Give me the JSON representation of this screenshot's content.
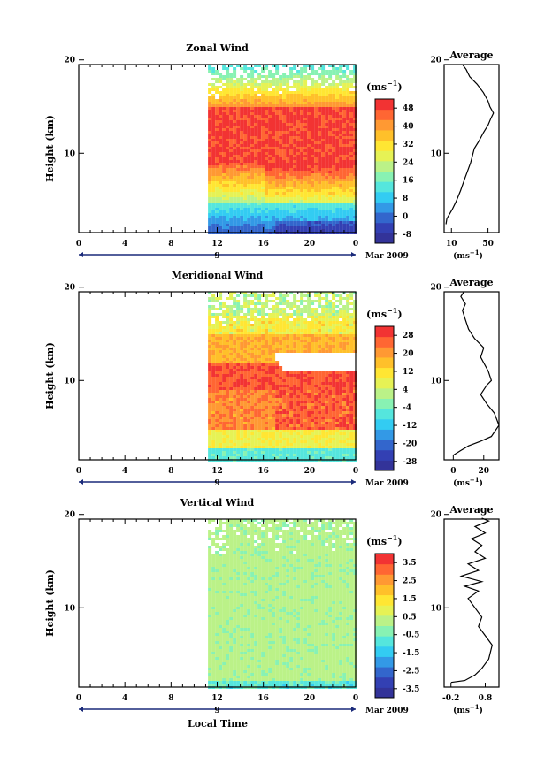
{
  "figure": {
    "xlabel": "Local Time",
    "date_label": "Mar 2009",
    "day_label": "9",
    "unit_label": "(ms",
    "unit_sup": "−1",
    "average_title": "Average"
  },
  "colorscale": [
    "#333399",
    "#3340b3",
    "#3366cc",
    "#3399e6",
    "#33ccf2",
    "#55e6dd",
    "#88f2b3",
    "#bbf288",
    "#e6f255",
    "#ffe633",
    "#ffc02a",
    "#ff9933",
    "#ff6633",
    "#f23333"
  ],
  "chart_data": [
    {
      "type": "heatmap",
      "title": "Zonal Wind",
      "ylabel": "Height (km)",
      "x_ticks": [
        "0",
        "4",
        "8",
        "12",
        "16",
        "20",
        "0"
      ],
      "xlim": [
        0,
        24
      ],
      "y_ticks": [
        "20",
        "10"
      ],
      "ylim": [
        1.5,
        19.5
      ],
      "data_start_hour": 11.2,
      "colorbar": {
        "ticks": [
          "48",
          "40",
          "32",
          "24",
          "16",
          "8",
          "0",
          "-8"
        ],
        "range": [
          -12,
          52
        ]
      },
      "profile_points": [
        [
          4,
          2.4
        ],
        [
          5,
          3
        ],
        [
          8,
          3.5
        ],
        [
          11,
          4
        ],
        [
          15,
          4.8
        ],
        [
          20,
          6
        ],
        [
          25,
          7.4
        ],
        [
          28,
          8.2
        ],
        [
          31,
          9
        ],
        [
          35,
          10.5
        ],
        [
          40,
          11.3
        ],
        [
          45,
          12.2
        ],
        [
          50,
          13
        ],
        [
          53,
          13.7
        ],
        [
          56,
          14.3
        ],
        [
          52,
          15
        ],
        [
          50,
          15.6
        ],
        [
          45,
          16.5
        ],
        [
          38,
          17.4
        ],
        [
          30,
          18.2
        ],
        [
          26,
          19
        ],
        [
          22,
          19.5
        ]
      ],
      "profile_ticks": [
        "10",
        "50"
      ],
      "profile_xlim": [
        2,
        62
      ]
    },
    {
      "type": "heatmap",
      "title": "Meridional Wind",
      "ylabel": "Height (km)",
      "x_ticks": [
        "0",
        "4",
        "8",
        "12",
        "16",
        "20",
        "0"
      ],
      "xlim": [
        0,
        24
      ],
      "y_ticks": [
        "20",
        "10"
      ],
      "ylim": [
        1.5,
        19.5
      ],
      "data_start_hour": 11.2,
      "colorbar": {
        "ticks": [
          "28",
          "20",
          "12",
          "4",
          "-4",
          "-12",
          "-20",
          "-28"
        ],
        "range": [
          -32,
          32
        ]
      },
      "profile_points": [
        [
          0,
          2
        ],
        [
          5,
          2.5
        ],
        [
          10,
          3
        ],
        [
          18,
          3.5
        ],
        [
          25,
          4
        ],
        [
          30,
          5.2
        ],
        [
          27,
          6.5
        ],
        [
          22,
          7.5
        ],
        [
          18,
          8.5
        ],
        [
          22,
          9.5
        ],
        [
          25,
          10
        ],
        [
          23,
          11
        ],
        [
          18,
          12.5
        ],
        [
          20,
          13.5
        ],
        [
          14,
          14.5
        ],
        [
          10,
          15.5
        ],
        [
          8,
          16.5
        ],
        [
          6,
          17.5
        ],
        [
          8,
          18.2
        ],
        [
          5,
          19
        ],
        [
          7,
          19.5
        ]
      ],
      "profile_ticks": [
        "0",
        "20"
      ],
      "profile_xlim": [
        -6,
        30
      ]
    },
    {
      "type": "heatmap",
      "title": "Vertical Wind",
      "ylabel": "Height (km)",
      "x_ticks": [
        "0",
        "4",
        "8",
        "12",
        "16",
        "20",
        "0"
      ],
      "xlim": [
        0,
        24
      ],
      "y_ticks": [
        "20",
        "10"
      ],
      "ylim": [
        1.5,
        19.5
      ],
      "data_start_hour": 11.2,
      "colorbar": {
        "ticks": [
          "3.5",
          "2.5",
          "1.5",
          "0.5",
          "-0.5",
          "-1.5",
          "-2.5",
          "-3.5"
        ],
        "range": [
          -4,
          4
        ]
      },
      "profile_points": [
        [
          -0.2,
          2
        ],
        [
          0.2,
          2.2
        ],
        [
          0.5,
          2.8
        ],
        [
          0.7,
          3.5
        ],
        [
          0.9,
          4.5
        ],
        [
          1.0,
          6
        ],
        [
          0.8,
          7
        ],
        [
          0.6,
          8
        ],
        [
          0.7,
          9
        ],
        [
          0.5,
          10
        ],
        [
          0.3,
          11
        ],
        [
          0.6,
          11.8
        ],
        [
          0.2,
          12.3
        ],
        [
          0.7,
          12.8
        ],
        [
          0.1,
          13.4
        ],
        [
          0.6,
          14
        ],
        [
          0.3,
          14.7
        ],
        [
          0.8,
          15.3
        ],
        [
          0.5,
          16
        ],
        [
          0.7,
          16.7
        ],
        [
          0.4,
          17.4
        ],
        [
          0.8,
          18
        ],
        [
          0.5,
          18.7
        ],
        [
          0.9,
          19.3
        ],
        [
          0.7,
          19.6
        ]
      ],
      "profile_ticks": [
        "-0.2",
        "0.8"
      ],
      "profile_xlim": [
        -0.4,
        1.2
      ]
    }
  ]
}
